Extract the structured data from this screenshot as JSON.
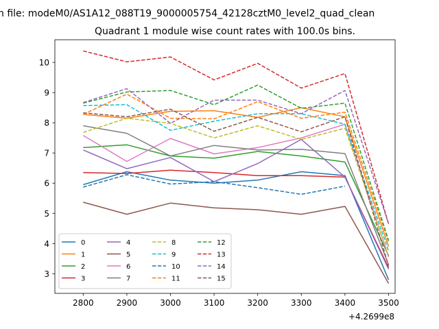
{
  "chart_data": {
    "type": "line",
    "suptitle": "n file: modeM0/AS1A12_088T19_9000005754_42128cztM0_level2_quad_clean",
    "title": "Quadrant 1 module wise count rates with 100.0s bins.",
    "xlabel": "",
    "ylabel": "",
    "x_offset_label": "+4.2699e8",
    "x": [
      2800,
      2900,
      3000,
      3100,
      3200,
      3300,
      3400,
      3500
    ],
    "xticks": [
      "2800",
      "2900",
      "3000",
      "3100",
      "3200",
      "3300",
      "3400",
      "3500"
    ],
    "yticks": [
      "3",
      "4",
      "5",
      "6",
      "7",
      "8",
      "9",
      "10"
    ],
    "xlim": [
      2735,
      3515
    ],
    "ylim": [
      2.35,
      10.75
    ],
    "grid": false,
    "legend_position": "lower-left",
    "series": [
      {
        "name": "0",
        "color": "#1f77b4",
        "dash": "solid",
        "values": [
          5.95,
          6.38,
          6.1,
          6.0,
          6.1,
          6.38,
          6.25,
          2.8
        ]
      },
      {
        "name": "1",
        "color": "#ff7f0e",
        "dash": "solid",
        "values": [
          8.28,
          8.15,
          8.38,
          8.4,
          8.18,
          8.5,
          8.2,
          3.9
        ]
      },
      {
        "name": "2",
        "color": "#2ca02c",
        "dash": "solid",
        "values": [
          7.18,
          7.27,
          6.9,
          6.83,
          7.05,
          6.9,
          6.7,
          3.6
        ]
      },
      {
        "name": "3",
        "color": "#d62728",
        "dash": "solid",
        "values": [
          6.35,
          6.32,
          6.43,
          6.35,
          6.25,
          6.25,
          6.2,
          3.2
        ]
      },
      {
        "name": "4",
        "color": "#9467bd",
        "dash": "solid",
        "values": [
          7.1,
          6.48,
          6.85,
          6.05,
          6.65,
          7.45,
          6.2,
          3.15
        ]
      },
      {
        "name": "5",
        "color": "#8c564b",
        "dash": "solid",
        "values": [
          5.37,
          4.97,
          5.34,
          5.18,
          5.12,
          4.97,
          5.23,
          2.68
        ]
      },
      {
        "name": "6",
        "color": "#e377c2",
        "dash": "solid",
        "values": [
          7.58,
          6.72,
          7.48,
          6.97,
          7.18,
          7.5,
          7.95,
          3.55
        ]
      },
      {
        "name": "7",
        "color": "#7f7f7f",
        "dash": "solid",
        "values": [
          7.9,
          7.65,
          6.9,
          7.25,
          7.1,
          7.12,
          6.98,
          3.3
        ]
      },
      {
        "name": "8",
        "color": "#bcbd22",
        "dash": "dashed",
        "values": [
          7.68,
          8.15,
          7.98,
          7.5,
          7.9,
          7.45,
          7.82,
          3.58
        ]
      },
      {
        "name": "9",
        "color": "#17becf",
        "dash": "dashed",
        "values": [
          8.57,
          8.6,
          7.75,
          8.05,
          8.3,
          8.3,
          7.95,
          3.75
        ]
      },
      {
        "name": "10",
        "color": "#1f77b4",
        "dash": "dashed",
        "values": [
          5.87,
          6.28,
          5.97,
          6.05,
          5.85,
          5.63,
          5.9,
          null
        ]
      },
      {
        "name": "11",
        "color": "#ff7f0e",
        "dash": "dashed",
        "values": [
          8.28,
          8.95,
          8.15,
          8.13,
          8.7,
          8.15,
          8.35,
          4.05
        ]
      },
      {
        "name": "12",
        "color": "#2ca02c",
        "dash": "dashed",
        "values": [
          8.65,
          9.02,
          9.07,
          8.6,
          9.25,
          8.48,
          8.65,
          4.1
        ]
      },
      {
        "name": "13",
        "color": "#d62728",
        "dash": "dashed",
        "values": [
          10.38,
          10.02,
          10.18,
          9.42,
          9.97,
          9.15,
          9.63,
          4.65
        ]
      },
      {
        "name": "14",
        "color": "#9467bd",
        "dash": "dashed",
        "values": [
          8.67,
          9.13,
          7.98,
          8.75,
          8.75,
          8.3,
          9.07,
          4.65
        ]
      },
      {
        "name": "15",
        "color": "#8c564b",
        "dash": "dashed",
        "values": [
          8.33,
          8.2,
          8.45,
          7.72,
          8.18,
          7.7,
          8.2,
          3.25
        ]
      }
    ]
  }
}
